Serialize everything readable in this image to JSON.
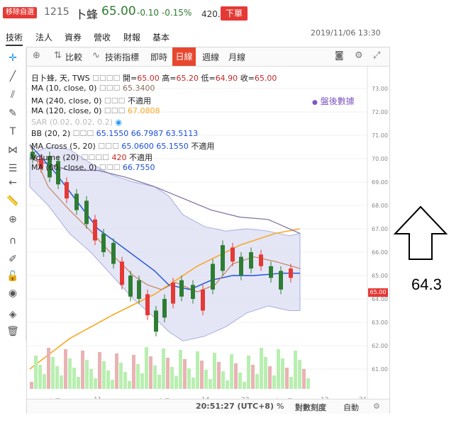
{
  "header": {
    "remove_label": "移除自選",
    "stock_code": "1215",
    "stock_name": "卜蜂",
    "price": "65.00",
    "change": "-0.10",
    "change_pct": "-0.15%",
    "volume": "420.3張",
    "order_label": "下單"
  },
  "tabs": [
    "技術",
    "法人",
    "資券",
    "營收",
    "財報",
    "基本"
  ],
  "datetime": "2019/11/06 13:30",
  "chart_toolbar": {
    "compare": "比較",
    "indicators": "技術指標",
    "realtime": "即時",
    "daily": "日線",
    "weekly": "週線",
    "monthly": "月線"
  },
  "legend": {
    "main": {
      "name": "日卜蜂, 天, TWS",
      "open_label": "開=",
      "open": "65.00",
      "high_label": "高=",
      "high": "65.20",
      "low_label": "低=",
      "low": "64.90",
      "close_label": "收=",
      "close": "65.00"
    },
    "ma10": {
      "name": "MA (10, close, 0)",
      "value": "65.3400"
    },
    "ma240": {
      "name": "MA (240, close, 0)",
      "value": "不適用"
    },
    "ma120": {
      "name": "MA (120, close, 0)",
      "value": "67.0808"
    },
    "sar": {
      "name": "SAR (0.02, 0.02, 0.2)"
    },
    "bb": {
      "name": "BB (20, 2)",
      "v1": "65.1550",
      "v2": "66.7987",
      "v3": "63.5113"
    },
    "macross": {
      "name": "MA Cross (5, 20)",
      "v1": "65.0600",
      "v2": "65.1550",
      "v3": "不適用"
    },
    "volume": {
      "name": "Volume (20)",
      "v1": "420",
      "v2": "不適用"
    },
    "ma60": {
      "name": "MA (60, close, 0)",
      "value": "66.7550"
    }
  },
  "after_hours": "盤後數據",
  "price_axis": [
    "73.00",
    "72.00",
    "71.00",
    "70.00",
    "69.00",
    "68.00",
    "67.00",
    "66.00",
    "65.00",
    "64.00",
    "63.00",
    "62.00",
    "61.00"
  ],
  "current_price_tag": "65.00",
  "date_axis": [
    "九月",
    "11",
    "十月",
    "14",
    "23",
    "十一月",
    "12",
    "21"
  ],
  "status_bar": {
    "time": "20:51:27 (UTC+8)",
    "percent": "%",
    "log": "對數刻度",
    "auto": "自動"
  },
  "annotation": {
    "value": "64.3"
  },
  "colors": {
    "up": "#e53935",
    "down": "#2e7d32",
    "bb_fill": "#d9dcf2",
    "ma_orange": "#f9a825",
    "ma_blue": "#1c4ed8",
    "ma_brown": "#c4835a",
    "ma_purple": "#7e6c9e"
  }
}
